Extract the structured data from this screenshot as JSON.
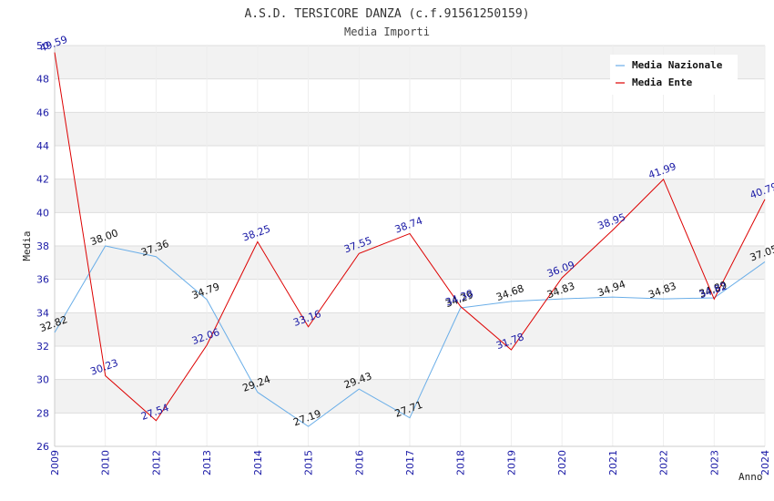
{
  "chart_data": {
    "type": "line",
    "title": "A.S.D. TERSICORE DANZA (c.f.91561250159)",
    "subtitle": "Media Importi",
    "xlabel": "Anno",
    "ylabel": "Media",
    "ylim": [
      26,
      50
    ],
    "yticks": [
      "26",
      "28",
      "30",
      "32",
      "34",
      "36",
      "38",
      "40",
      "42",
      "44",
      "46",
      "48",
      "50"
    ],
    "categories": [
      "2009",
      "2010",
      "2012",
      "2013",
      "2014",
      "2015",
      "2016",
      "2017",
      "2018",
      "2019",
      "2020",
      "2021",
      "2022",
      "2023",
      "2024"
    ],
    "series": [
      {
        "name": "Media Nazionale",
        "color": "#6aaee8",
        "values": [
          32.82,
          38.0,
          37.36,
          34.79,
          29.24,
          27.19,
          29.43,
          27.71,
          34.29,
          34.68,
          34.83,
          34.94,
          34.83,
          34.89,
          37.05
        ],
        "labels": [
          "32.82",
          "38.00",
          "37.36",
          "34.79",
          "29.24",
          "27.19",
          "29.43",
          "27.71",
          "34.29",
          "34.68",
          "34.83",
          "34.94",
          "34.83",
          "34.89",
          "37.05"
        ]
      },
      {
        "name": "Media Ente",
        "color": "#dd0000",
        "values": [
          49.59,
          30.23,
          27.54,
          32.06,
          38.25,
          33.16,
          37.55,
          38.74,
          34.38,
          31.78,
          36.09,
          38.95,
          41.99,
          34.82,
          40.79
        ],
        "labels": [
          "49.59",
          "30.23",
          "27.54",
          "32.06",
          "38.25",
          "33.16",
          "37.55",
          "38.74",
          "34.38",
          "31.78",
          "36.09",
          "38.95",
          "41.99",
          "34.82",
          "40.79"
        ]
      }
    ],
    "legend": "top-right",
    "grid": true
  }
}
